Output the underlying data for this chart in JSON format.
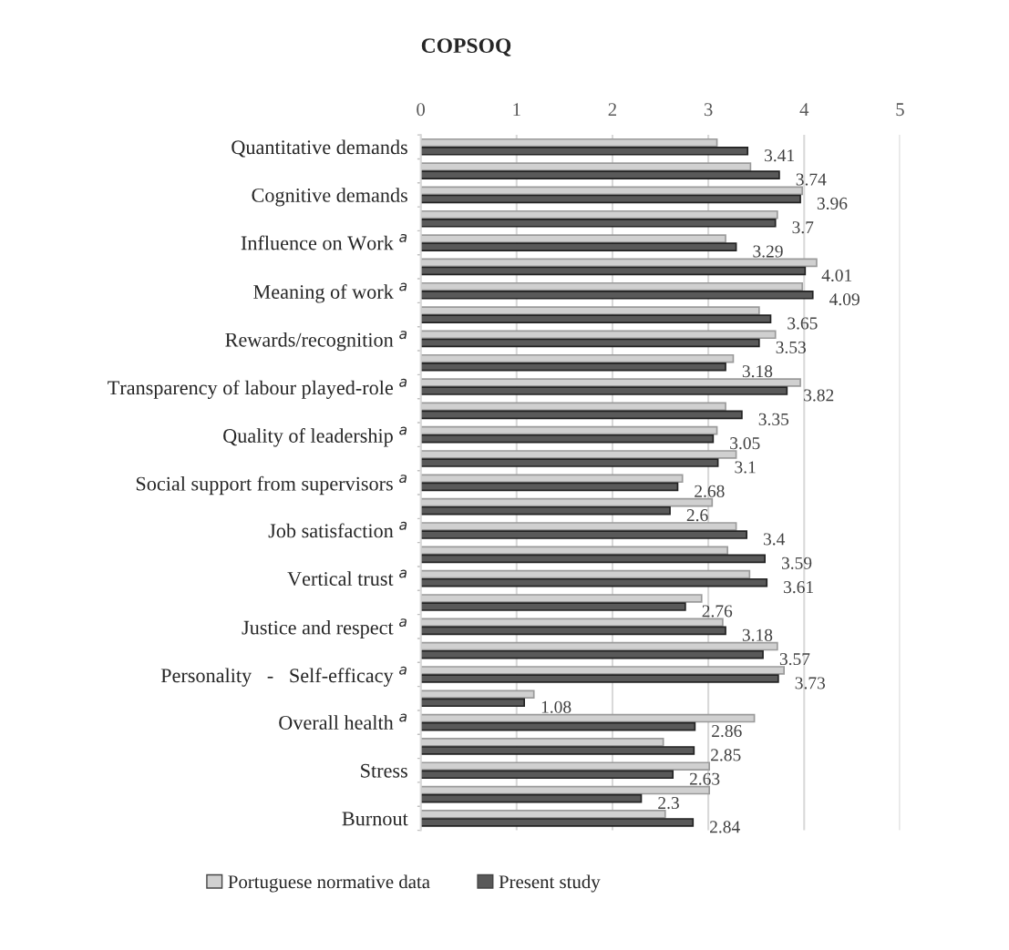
{
  "chart_data": {
    "type": "bar",
    "orientation": "horizontal",
    "title": "COPSOQ",
    "categories": [
      "Quantitative demands",
      null,
      "Cognitive demands",
      null,
      "Influence on Work $^{a}$",
      null,
      "Meaning of work $^{a}$",
      null,
      "Rewards/recognition $^{a}$",
      null,
      "Transparency of labour played-role $^{a}$",
      null,
      "Quality of leadership $^{a}$",
      null,
      "Social support from supervisors $^{a}$",
      null,
      "Job satisfaction $^{a}$",
      null,
      "Vertical trust $^{a}$",
      null,
      "Justice and respect $^{a}$",
      null,
      "Personality   -   Self-efficacy $^{a}$",
      null,
      "Overall health $^{a}$",
      null,
      "Stress",
      null,
      "Burnout"
    ],
    "series": [
      {
        "name": "Portuguese normative data",
        "color": "#d0d0d0",
        "values": [
          3.09,
          3.44,
          3.98,
          3.72,
          3.18,
          4.13,
          3.98,
          3.53,
          3.7,
          3.26,
          3.96,
          3.18,
          3.09,
          3.29,
          2.73,
          3.04,
          3.29,
          3.2,
          3.43,
          2.93,
          3.15,
          3.72,
          3.79,
          1.18,
          3.48,
          2.53,
          3.01,
          3.01,
          2.55
        ]
      },
      {
        "name": "Present study",
        "color": "#595959",
        "values": [
          3.41,
          3.74,
          3.96,
          3.7,
          3.29,
          4.01,
          4.09,
          3.65,
          3.53,
          3.18,
          3.82,
          3.35,
          3.05,
          3.1,
          2.68,
          2.6,
          3.4,
          3.59,
          3.61,
          2.76,
          3.18,
          3.57,
          3.73,
          1.08,
          2.86,
          2.85,
          2.63,
          2.3,
          2.84
        ],
        "value_labels": [
          "3.41",
          "3.74",
          "3.96",
          "3.7",
          "3.29",
          "4.01",
          "4.09",
          "3.65",
          "3.53",
          "3.18",
          "3.82",
          "3.35",
          "3.05",
          "3.1",
          "2.68",
          "2.6",
          "3.4",
          "3.59",
          "3.61",
          "2.76",
          "3.18",
          "3.57",
          "3.73",
          "1.08",
          "2.86",
          "2.85",
          "2.63",
          "2.3",
          "2.84"
        ]
      }
    ],
    "xlim": [
      0,
      5
    ],
    "xticks": [
      0,
      1,
      2,
      3,
      4,
      5
    ],
    "grid": "x",
    "legend": "bottom"
  }
}
